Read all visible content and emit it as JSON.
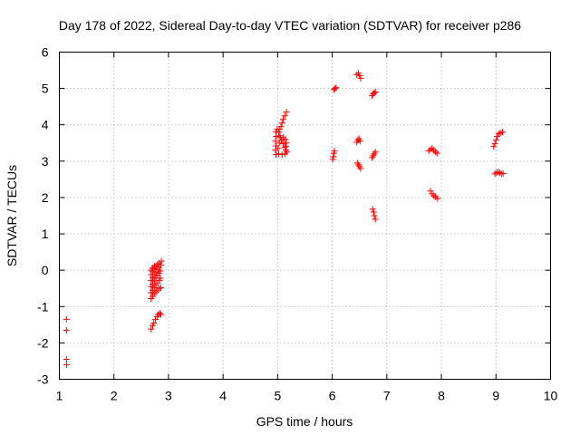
{
  "chart_data": {
    "type": "scatter",
    "title": "Day 178 of 2022, Sidereal Day-to-day VTEC variation (SDTVAR) for receiver p286",
    "xlabel": "GPS time / hours",
    "ylabel": "SDTVAR / TECUs",
    "xlim": [
      1,
      10
    ],
    "ylim": [
      -3,
      6
    ],
    "x_ticks": [
      1,
      2,
      3,
      4,
      5,
      6,
      7,
      8,
      9,
      10
    ],
    "y_ticks": [
      -3,
      -2,
      -1,
      0,
      1,
      2,
      3,
      4,
      5,
      6
    ],
    "grid": true,
    "marker": "+",
    "color": "#ff0000",
    "points": [
      [
        1.13,
        -1.35
      ],
      [
        1.13,
        -1.65
      ],
      [
        1.13,
        -2.45
      ],
      [
        1.13,
        -2.6
      ],
      [
        2.68,
        -1.62
      ],
      [
        2.71,
        -1.52
      ],
      [
        2.73,
        -1.45
      ],
      [
        2.76,
        -1.35
      ],
      [
        2.79,
        -1.28
      ],
      [
        2.81,
        -1.22
      ],
      [
        2.84,
        -1.18
      ],
      [
        2.86,
        -1.22
      ],
      [
        2.68,
        -0.78
      ],
      [
        2.71,
        -0.72
      ],
      [
        2.74,
        -0.65
      ],
      [
        2.77,
        -0.6
      ],
      [
        2.8,
        -0.55
      ],
      [
        2.83,
        -0.5
      ],
      [
        2.86,
        -0.48
      ],
      [
        2.68,
        -0.62
      ],
      [
        2.71,
        -0.55
      ],
      [
        2.74,
        -0.48
      ],
      [
        2.77,
        -0.42
      ],
      [
        2.8,
        -0.35
      ],
      [
        2.83,
        -0.28
      ],
      [
        2.85,
        -0.22
      ],
      [
        2.68,
        -0.45
      ],
      [
        2.71,
        -0.38
      ],
      [
        2.74,
        -0.3
      ],
      [
        2.77,
        -0.22
      ],
      [
        2.8,
        -0.15
      ],
      [
        2.83,
        -0.08
      ],
      [
        2.85,
        -0.02
      ],
      [
        2.68,
        -0.28
      ],
      [
        2.71,
        -0.2
      ],
      [
        2.74,
        -0.12
      ],
      [
        2.77,
        -0.05
      ],
      [
        2.8,
        0.02
      ],
      [
        2.83,
        0.08
      ],
      [
        2.86,
        0.14
      ],
      [
        2.68,
        -0.12
      ],
      [
        2.71,
        -0.04
      ],
      [
        2.74,
        0.04
      ],
      [
        2.77,
        0.1
      ],
      [
        2.8,
        0.16
      ],
      [
        2.83,
        0.2
      ],
      [
        2.87,
        0.25
      ],
      [
        2.68,
        0.0
      ],
      [
        2.71,
        0.06
      ],
      [
        2.74,
        0.12
      ],
      [
        4.97,
        3.18
      ],
      [
        5.02,
        3.2
      ],
      [
        5.08,
        3.18
      ],
      [
        5.13,
        3.2
      ],
      [
        5.17,
        3.25
      ],
      [
        4.96,
        3.3
      ],
      [
        4.97,
        3.42
      ],
      [
        4.96,
        3.55
      ],
      [
        4.97,
        3.68
      ],
      [
        4.97,
        3.8
      ],
      [
        4.99,
        3.87
      ],
      [
        5.02,
        3.8
      ],
      [
        5.04,
        3.7
      ],
      [
        5.07,
        3.58
      ],
      [
        5.1,
        3.48
      ],
      [
        5.13,
        3.38
      ],
      [
        5.15,
        3.3
      ],
      [
        5.03,
        3.88
      ],
      [
        5.06,
        3.95
      ],
      [
        5.08,
        4.05
      ],
      [
        5.1,
        4.15
      ],
      [
        5.13,
        4.25
      ],
      [
        5.16,
        4.35
      ],
      [
        5.05,
        3.65
      ],
      [
        5.1,
        3.65
      ],
      [
        5.14,
        3.6
      ],
      [
        5.16,
        3.5
      ],
      [
        5.15,
        3.4
      ],
      [
        5.03,
        3.5
      ],
      [
        5.01,
        3.35
      ],
      [
        6.01,
        3.05
      ],
      [
        6.02,
        3.12
      ],
      [
        6.03,
        3.22
      ],
      [
        6.04,
        3.28
      ],
      [
        6.03,
        4.97
      ],
      [
        6.05,
        5.0
      ],
      [
        6.07,
        5.02
      ],
      [
        6.45,
        5.38
      ],
      [
        6.48,
        5.42
      ],
      [
        6.5,
        5.35
      ],
      [
        6.52,
        5.28
      ],
      [
        6.45,
        3.52
      ],
      [
        6.47,
        3.58
      ],
      [
        6.49,
        3.62
      ],
      [
        6.51,
        3.55
      ],
      [
        6.46,
        2.95
      ],
      [
        6.48,
        2.9
      ],
      [
        6.5,
        2.85
      ],
      [
        6.52,
        2.8
      ],
      [
        6.73,
        4.8
      ],
      [
        6.75,
        4.85
      ],
      [
        6.77,
        4.88
      ],
      [
        6.79,
        4.9
      ],
      [
        6.73,
        3.1
      ],
      [
        6.75,
        3.15
      ],
      [
        6.77,
        3.2
      ],
      [
        6.79,
        3.25
      ],
      [
        6.74,
        1.68
      ],
      [
        6.76,
        1.6
      ],
      [
        6.77,
        1.5
      ],
      [
        6.79,
        1.4
      ],
      [
        7.77,
        3.28
      ],
      [
        7.8,
        3.32
      ],
      [
        7.83,
        3.35
      ],
      [
        7.86,
        3.3
      ],
      [
        7.89,
        3.25
      ],
      [
        7.92,
        3.22
      ],
      [
        7.8,
        2.18
      ],
      [
        7.83,
        2.1
      ],
      [
        7.86,
        2.05
      ],
      [
        7.89,
        2.02
      ],
      [
        7.93,
        1.97
      ],
      [
        8.96,
        3.4
      ],
      [
        8.98,
        3.48
      ],
      [
        9.0,
        3.58
      ],
      [
        9.02,
        3.68
      ],
      [
        9.05,
        3.75
      ],
      [
        9.08,
        3.78
      ],
      [
        9.12,
        3.8
      ],
      [
        8.98,
        2.65
      ],
      [
        9.01,
        2.68
      ],
      [
        9.04,
        2.7
      ],
      [
        9.07,
        2.68
      ],
      [
        9.1,
        2.65
      ],
      [
        9.13,
        2.66
      ]
    ]
  }
}
